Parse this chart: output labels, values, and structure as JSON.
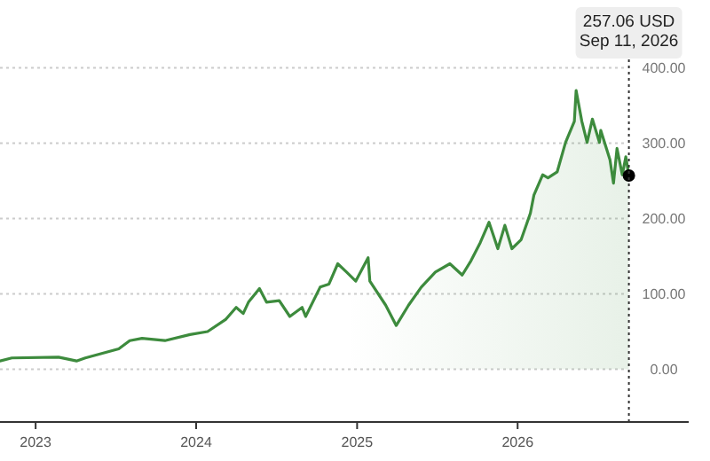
{
  "chart_data": {
    "type": "area",
    "x": [
      "2022-10-12",
      "2022-11-08",
      "2023-02-22",
      "2023-04-04",
      "2023-04-24",
      "2023-07-09",
      "2023-08-03",
      "2023-08-31",
      "2023-10-22",
      "2023-12-18",
      "2024-01-27",
      "2024-03-08",
      "2024-04-01",
      "2024-04-17",
      "2024-04-29",
      "2024-05-24",
      "2024-06-09",
      "2024-07-08",
      "2024-08-01",
      "2024-08-29",
      "2024-09-06",
      "2024-10-09",
      "2024-10-29",
      "2024-11-18",
      "2024-12-08",
      "2024-12-29",
      "2025-01-26",
      "2025-01-30",
      "2025-03-07",
      "2025-03-31",
      "2025-04-28",
      "2025-05-27",
      "2025-06-28",
      "2025-07-31",
      "2025-08-28",
      "2025-09-17",
      "2025-10-08",
      "2025-10-28",
      "2025-11-17",
      "2025-12-03",
      "2025-12-19",
      "2026-01-09",
      "2026-01-30",
      "2026-02-07",
      "2026-02-27",
      "2026-03-11",
      "2026-04-01",
      "2026-04-20",
      "2026-05-10",
      "2026-05-14",
      "2026-05-27",
      "2026-06-08",
      "2026-06-20",
      "2026-07-06",
      "2026-07-09",
      "2026-07-30",
      "2026-08-07",
      "2026-08-15",
      "2026-08-27",
      "2026-09-04",
      "2026-09-11"
    ],
    "series": [
      {
        "color": "#3d8b3d",
        "values": [
          11,
          15,
          16,
          11,
          15,
          27,
          38,
          41,
          38,
          46,
          50,
          66,
          82,
          74,
          89,
          107,
          89,
          91,
          70,
          82,
          70,
          109,
          113,
          140,
          129,
          117,
          148,
          117,
          85,
          58,
          85,
          109,
          129,
          140,
          125,
          144,
          168,
          195,
          160,
          191,
          160,
          172,
          207,
          231,
          258,
          254,
          262,
          301,
          329,
          370,
          329,
          301,
          332,
          301,
          317,
          278,
          247,
          293,
          258,
          282,
          257
        ]
      }
    ],
    "xlim": [
      "2022-10-12",
      "2027-01-25"
    ],
    "xticks": [
      {
        "value": "2023-01-01",
        "label": "2023"
      },
      {
        "value": "2024-01-01",
        "label": "2024"
      },
      {
        "value": "2025-01-01",
        "label": "2025"
      },
      {
        "value": "2026-01-01",
        "label": "2026"
      }
    ],
    "ylim": [
      -70,
      490
    ],
    "yticks": [
      {
        "value": 0,
        "label": "0.00"
      },
      {
        "value": 100,
        "label": "100.00"
      },
      {
        "value": 200,
        "label": "200.00"
      },
      {
        "value": 300,
        "label": "300.00"
      },
      {
        "value": 400,
        "label": "400.00"
      }
    ],
    "grid": "y",
    "ref_lines": [
      {
        "axis": "x",
        "value": "2026-09-11",
        "line_style": "dotted",
        "color": "#333333"
      }
    ],
    "annotations": [
      "257.06 USD\nSep 11, 2026"
    ]
  }
}
